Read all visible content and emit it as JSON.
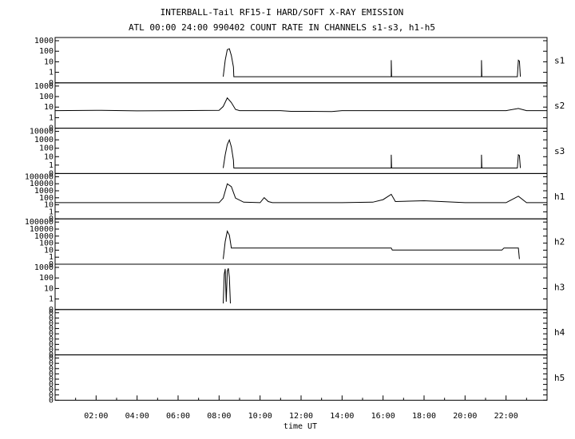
{
  "header": {
    "title": "INTERBALL-Tail RF15-I HARD/SOFT X-RAY EMISSION",
    "subtitle": "ATL 00:00 24:00 990402  COUNT RATE IN CHANNELS s1-s3, h1-h5"
  },
  "chart_data": {
    "type": "line",
    "xlabel": "time UT",
    "xlim": [
      0,
      24
    ],
    "x_ticks": [
      "02:00",
      "04:00",
      "06:00",
      "08:00",
      "10:00",
      "12:00",
      "14:00",
      "16:00",
      "18:00",
      "20:00",
      "22:00"
    ],
    "y_scale": "log",
    "grid": false,
    "line_color": "#000000",
    "panels": [
      {
        "name": "s1",
        "y_ticks": [
          "1000",
          "100",
          "10",
          "1",
          "0"
        ],
        "points": [
          [
            8.2,
            0.2
          ],
          [
            8.3,
            10
          ],
          [
            8.4,
            120
          ],
          [
            8.5,
            150
          ],
          [
            8.6,
            30
          ],
          [
            8.7,
            2
          ],
          [
            8.72,
            0.2
          ],
          [
            16.4,
            0.2
          ],
          [
            16.4,
            10
          ],
          [
            16.42,
            0.2
          ],
          [
            20.8,
            0.2
          ],
          [
            20.8,
            10
          ],
          [
            20.82,
            0.2
          ],
          [
            22.55,
            0.2
          ],
          [
            22.6,
            10
          ],
          [
            22.65,
            8
          ],
          [
            22.7,
            0.2
          ]
        ]
      },
      {
        "name": "s2",
        "y_ticks": [
          "1000",
          "100",
          "10",
          "1",
          "0"
        ],
        "points": [
          [
            0,
            3
          ],
          [
            2,
            3.2
          ],
          [
            4,
            2.8
          ],
          [
            6,
            3
          ],
          [
            8,
            3.2
          ],
          [
            8.2,
            8
          ],
          [
            8.4,
            60
          ],
          [
            8.6,
            20
          ],
          [
            8.8,
            4
          ],
          [
            9,
            3
          ],
          [
            10.6,
            3
          ],
          [
            11.0,
            3
          ],
          [
            11.5,
            2.5
          ],
          [
            12.4,
            2.5
          ],
          [
            13.5,
            2.4
          ],
          [
            14,
            3
          ],
          [
            16,
            3
          ],
          [
            18,
            3
          ],
          [
            20,
            3
          ],
          [
            22,
            3
          ],
          [
            22.6,
            5
          ],
          [
            23,
            3
          ],
          [
            24,
            3
          ]
        ]
      },
      {
        "name": "s3",
        "y_ticks": [
          "10000",
          "1000",
          "100",
          "10",
          "1",
          "0"
        ],
        "points": [
          [
            8.2,
            0.2
          ],
          [
            8.3,
            10
          ],
          [
            8.4,
            200
          ],
          [
            8.5,
            800
          ],
          [
            8.6,
            100
          ],
          [
            8.7,
            2
          ],
          [
            8.72,
            0.2
          ],
          [
            16.4,
            0.2
          ],
          [
            16.4,
            10
          ],
          [
            16.42,
            0.2
          ],
          [
            20.8,
            0.2
          ],
          [
            20.8,
            10
          ],
          [
            20.82,
            0.2
          ],
          [
            22.55,
            0.2
          ],
          [
            22.6,
            10
          ],
          [
            22.65,
            8
          ],
          [
            22.7,
            0.2
          ]
        ]
      },
      {
        "name": "h1",
        "y_ticks": [
          "100000",
          "10000",
          "1000",
          "100",
          "10",
          "1",
          "0"
        ],
        "points": [
          [
            0,
            10
          ],
          [
            8,
            10
          ],
          [
            8.2,
            50
          ],
          [
            8.4,
            8000
          ],
          [
            8.6,
            3000
          ],
          [
            8.8,
            50
          ],
          [
            9.2,
            12
          ],
          [
            10,
            10
          ],
          [
            10.2,
            60
          ],
          [
            10.4,
            15
          ],
          [
            10.6,
            10
          ],
          [
            12,
            10
          ],
          [
            14,
            10
          ],
          [
            15.5,
            12
          ],
          [
            16,
            30
          ],
          [
            16.4,
            200
          ],
          [
            16.6,
            15
          ],
          [
            18,
            20
          ],
          [
            20,
            10
          ],
          [
            22,
            10
          ],
          [
            22.6,
            100
          ],
          [
            23,
            10
          ],
          [
            24,
            10
          ]
        ]
      },
      {
        "name": "h2",
        "y_ticks": [
          "100000",
          "10000",
          "1000",
          "100",
          "10",
          "1",
          "0"
        ],
        "points": [
          [
            8.2,
            0.2
          ],
          [
            8.3,
            100
          ],
          [
            8.4,
            4000
          ],
          [
            8.5,
            1000
          ],
          [
            8.6,
            10
          ],
          [
            8.7,
            10
          ],
          [
            16.4,
            10
          ],
          [
            16.45,
            5
          ],
          [
            20.8,
            5
          ],
          [
            21.8,
            5
          ],
          [
            21.9,
            10
          ],
          [
            22.6,
            10
          ],
          [
            22.65,
            0.2
          ]
        ]
      },
      {
        "name": "h3",
        "y_ticks": [
          "1000",
          "100",
          "10",
          "1",
          "0"
        ],
        "points": [
          [
            8.2,
            0.2
          ],
          [
            8.25,
            200
          ],
          [
            8.3,
            700
          ],
          [
            8.35,
            0.3
          ],
          [
            8.4,
            400
          ],
          [
            8.45,
            800
          ],
          [
            8.5,
            100
          ],
          [
            8.55,
            0.2
          ]
        ]
      },
      {
        "name": "h4",
        "y_ticks": [
          "0",
          "0",
          "0",
          "0",
          "0",
          "0",
          "0",
          "0",
          "0"
        ],
        "points": []
      },
      {
        "name": "h5",
        "y_ticks": [
          "0",
          "0",
          "0",
          "0",
          "0",
          "0",
          "0",
          "0",
          "0"
        ],
        "points": []
      }
    ]
  }
}
